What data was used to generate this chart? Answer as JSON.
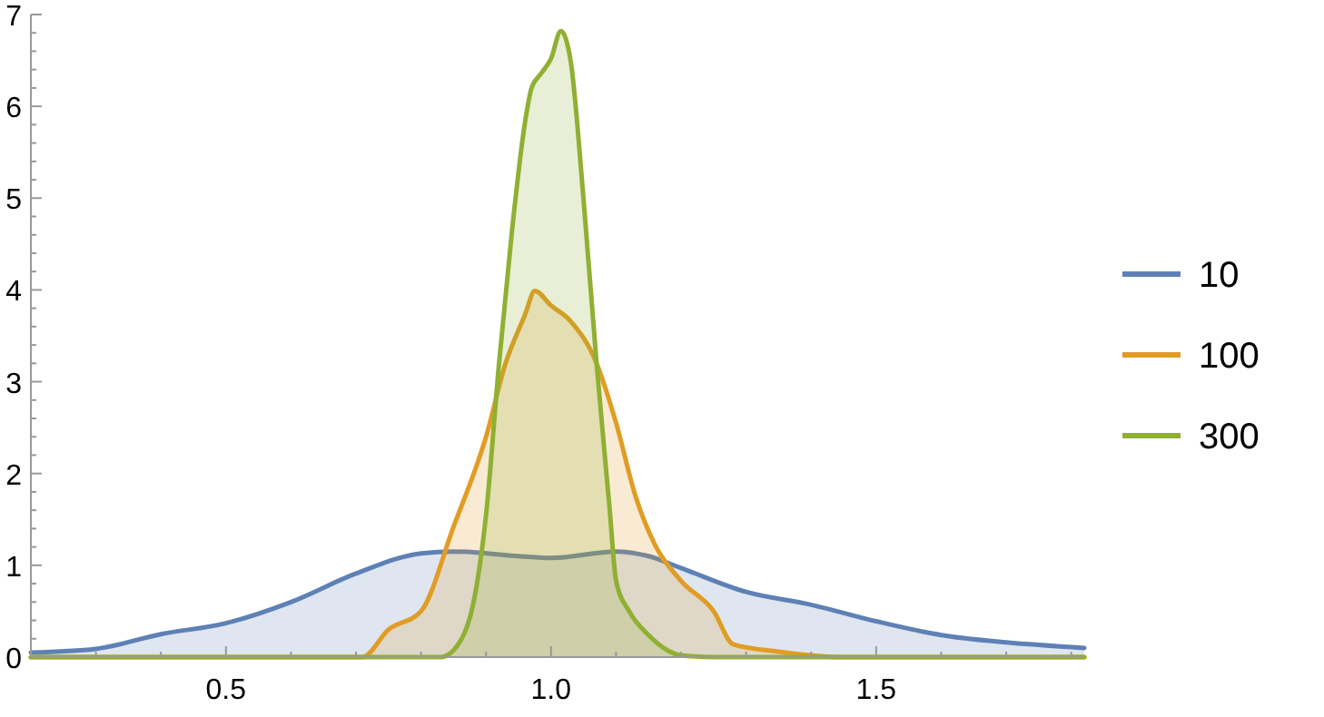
{
  "chart_data": {
    "type": "area",
    "xlim": [
      0.2,
      1.82
    ],
    "ylim": [
      0,
      7
    ],
    "xticks": [
      {
        "value": 0.2,
        "label": null
      },
      {
        "value": 0.3,
        "label": null
      },
      {
        "value": 0.4,
        "label": null
      },
      0.5,
      {
        "value": 0.6,
        "label": null
      },
      {
        "value": 0.7,
        "label": null
      },
      {
        "value": 0.8,
        "label": null
      },
      {
        "value": 0.9,
        "label": null
      },
      {
        "value": 1.0,
        "label": "1.0"
      },
      {
        "value": 1.1,
        "label": null
      },
      {
        "value": 1.2,
        "label": null
      },
      {
        "value": 1.3,
        "label": null
      },
      {
        "value": 1.4,
        "label": null
      },
      1.5,
      {
        "value": 1.6,
        "label": null
      },
      {
        "value": 1.7,
        "label": null
      },
      {
        "value": 1.8,
        "label": null
      }
    ],
    "yticks": [
      0,
      {
        "value": 0.2,
        "label": null
      },
      {
        "value": 0.4,
        "label": null
      },
      {
        "value": 0.6,
        "label": null
      },
      {
        "value": 0.8,
        "label": null
      },
      1,
      {
        "value": 1.2,
        "label": null
      },
      {
        "value": 1.4,
        "label": null
      },
      {
        "value": 1.6,
        "label": null
      },
      {
        "value": 1.8,
        "label": null
      },
      2,
      {
        "value": 2.2,
        "label": null
      },
      {
        "value": 2.4,
        "label": null
      },
      {
        "value": 2.6,
        "label": null
      },
      {
        "value": 2.8,
        "label": null
      },
      3,
      {
        "value": 3.2,
        "label": null
      },
      {
        "value": 3.4,
        "label": null
      },
      {
        "value": 3.6,
        "label": null
      },
      {
        "value": 3.8,
        "label": null
      },
      4,
      {
        "value": 4.2,
        "label": null
      },
      {
        "value": 4.4,
        "label": null
      },
      {
        "value": 4.6,
        "label": null
      },
      {
        "value": 4.8,
        "label": null
      },
      5,
      {
        "value": 5.2,
        "label": null
      },
      {
        "value": 5.4,
        "label": null
      },
      {
        "value": 5.6,
        "label": null
      },
      {
        "value": 5.8,
        "label": null
      },
      6,
      {
        "value": 6.2,
        "label": null
      },
      {
        "value": 6.4,
        "label": null
      },
      {
        "value": 6.6,
        "label": null
      },
      {
        "value": 6.8,
        "label": null
      },
      7
    ],
    "grid": false,
    "legend": "right",
    "series": [
      {
        "name": "10",
        "color": "#5e81b5",
        "x": [
          0.2,
          0.3,
          0.4,
          0.5,
          0.6,
          0.7,
          0.8,
          0.85,
          0.95,
          1.0,
          1.1,
          1.15,
          1.2,
          1.3,
          1.4,
          1.5,
          1.6,
          1.7,
          1.82
        ],
        "values": [
          0.05,
          0.09,
          0.25,
          0.37,
          0.6,
          0.91,
          1.13,
          1.15,
          1.1,
          1.08,
          1.15,
          1.1,
          0.97,
          0.71,
          0.57,
          0.39,
          0.24,
          0.16,
          0.1
        ]
      },
      {
        "name": "100",
        "color": "#e19c24",
        "x": [
          0.2,
          0.71,
          0.75,
          0.8,
          0.85,
          0.9,
          0.93,
          0.96,
          0.975,
          1.0,
          1.03,
          1.07,
          1.1,
          1.13,
          1.16,
          1.2,
          1.25,
          1.28,
          1.35,
          1.45,
          1.82
        ],
        "values": [
          0,
          0,
          0.3,
          0.5,
          1.42,
          2.4,
          3.2,
          3.73,
          3.99,
          3.83,
          3.66,
          3.2,
          2.55,
          1.75,
          1.22,
          0.83,
          0.5,
          0.14,
          0.06,
          0,
          0
        ]
      },
      {
        "name": "300",
        "color": "#8fb032",
        "x": [
          0.2,
          0.83,
          0.86,
          0.88,
          0.9,
          0.92,
          0.94,
          0.96,
          0.97,
          0.985,
          1.0,
          1.015,
          1.03,
          1.05,
          1.07,
          1.09,
          1.1,
          1.12,
          1.15,
          1.18,
          1.2,
          1.25,
          1.82
        ],
        "values": [
          0,
          0,
          0.17,
          0.57,
          1.55,
          3.2,
          4.65,
          5.83,
          6.2,
          6.36,
          6.52,
          6.82,
          6.5,
          4.98,
          3.2,
          1.62,
          0.83,
          0.5,
          0.24,
          0.07,
          0.02,
          0,
          0
        ]
      }
    ]
  }
}
